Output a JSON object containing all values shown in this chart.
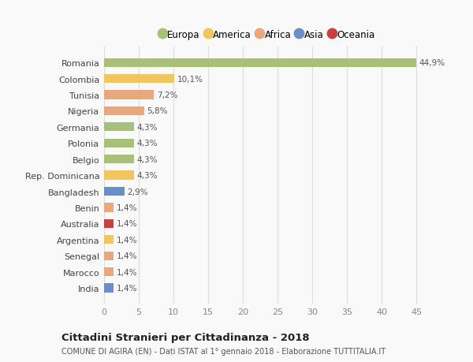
{
  "countries": [
    "Romania",
    "Colombia",
    "Tunisia",
    "Nigeria",
    "Germania",
    "Polonia",
    "Belgio",
    "Rep. Dominicana",
    "Bangladesh",
    "Benin",
    "Australia",
    "Argentina",
    "Senegal",
    "Marocco",
    "India"
  ],
  "values": [
    44.9,
    10.1,
    7.2,
    5.8,
    4.3,
    4.3,
    4.3,
    4.3,
    2.9,
    1.4,
    1.4,
    1.4,
    1.4,
    1.4,
    1.4
  ],
  "labels": [
    "44,9%",
    "10,1%",
    "7,2%",
    "5,8%",
    "4,3%",
    "4,3%",
    "4,3%",
    "4,3%",
    "2,9%",
    "1,4%",
    "1,4%",
    "1,4%",
    "1,4%",
    "1,4%",
    "1,4%"
  ],
  "colors": [
    "#a8c07a",
    "#f0c75e",
    "#e8a87c",
    "#e8a87c",
    "#a8c07a",
    "#a8c07a",
    "#a8c07a",
    "#f0c75e",
    "#6a8fc8",
    "#e8a87c",
    "#c94040",
    "#f0c75e",
    "#e8a87c",
    "#e8a87c",
    "#6a8fc8"
  ],
  "legend_labels": [
    "Europa",
    "America",
    "Africa",
    "Asia",
    "Oceania"
  ],
  "legend_colors": [
    "#a8c07a",
    "#f0c75e",
    "#e8a87c",
    "#6a8fc8",
    "#c94040"
  ],
  "title": "Cittadini Stranieri per Cittadinanza - 2018",
  "subtitle": "COMUNE DI AGIRA (EN) - Dati ISTAT al 1° gennaio 2018 - Elaborazione TUTTITALIA.IT",
  "xlim": [
    0,
    47
  ],
  "xticks": [
    0,
    5,
    10,
    15,
    20,
    25,
    30,
    35,
    40,
    45
  ],
  "background_color": "#f9f9f9",
  "grid_color": "#dddddd",
  "bar_height": 0.55
}
